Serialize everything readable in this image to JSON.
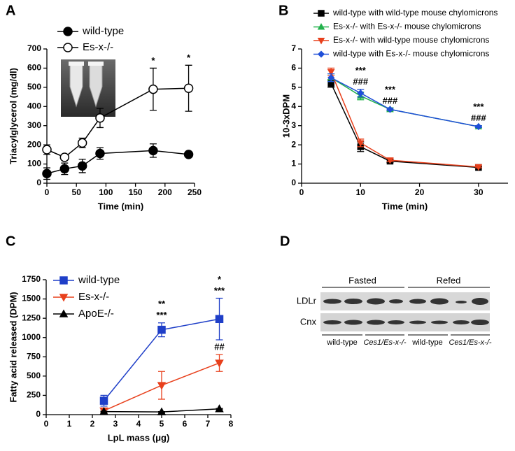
{
  "chart_data": [
    {
      "type": "line",
      "label": "A",
      "xlabel": "Time (min)",
      "ylabel": "Triacylglycerol (mg/dl)",
      "x": [
        0,
        30,
        60,
        90,
        180,
        240
      ],
      "xlim": [
        0,
        250
      ],
      "xticks": [
        0,
        50,
        100,
        150,
        200,
        250
      ],
      "ylim": [
        0,
        700
      ],
      "yticks": [
        0,
        100,
        200,
        300,
        400,
        500,
        600,
        700
      ],
      "series": [
        {
          "name": "wild-type",
          "color": "#000000",
          "marker": "circle",
          "values": [
            50,
            75,
            90,
            155,
            170,
            150
          ],
          "errors": [
            30,
            30,
            35,
            30,
            35,
            10
          ]
        },
        {
          "name": "Es-x-/-",
          "color": "#000000",
          "marker": "circle-open",
          "values": [
            175,
            135,
            210,
            340,
            490,
            495
          ],
          "errors": [
            25,
            10,
            25,
            50,
            110,
            120
          ]
        }
      ],
      "annotations": [
        {
          "x": 180,
          "texts": [
            "*"
          ],
          "series": 1
        },
        {
          "x": 240,
          "texts": [
            "*"
          ],
          "series": 1
        }
      ]
    },
    {
      "type": "line",
      "label": "B",
      "xlabel": "Time (min)",
      "ylabel": "10-3xDPM",
      "x": [
        5,
        10,
        15,
        30
      ],
      "xlim": [
        0,
        35
      ],
      "xticks": [
        0,
        10,
        20,
        30
      ],
      "ylim": [
        0,
        7
      ],
      "yticks": [
        0,
        1,
        2,
        3,
        4,
        5,
        6,
        7
      ],
      "series": [
        {
          "name": "wild-type with wild-type mouse chylomicrons",
          "color": "#000000",
          "marker": "square",
          "values": [
            5.2,
            1.9,
            1.15,
            0.82
          ],
          "errors": [
            0.2,
            0.25,
            0.08,
            0.05
          ]
        },
        {
          "name": "Es-x-/- with Es-x-/- mouse chylomicrons",
          "color": "#22b14c",
          "marker": "triangle-up",
          "values": [
            5.5,
            4.55,
            3.85,
            2.95
          ],
          "errors": [
            0.2,
            0.2,
            0.08,
            0.05
          ]
        },
        {
          "name": "Es-x-/- with wild-type mouse chylomicrons",
          "color": "#e8401c",
          "marker": "triangle-down",
          "values": [
            5.8,
            2.1,
            1.2,
            0.85
          ],
          "errors": [
            0.2,
            0.2,
            0.08,
            0.05
          ]
        },
        {
          "name": "wild-type with Es-x-/- mouse chylomicrons",
          "color": "#1f4fd8",
          "marker": "diamond",
          "values": [
            5.5,
            4.7,
            3.85,
            2.95
          ],
          "errors": [
            0.2,
            0.2,
            0.05,
            0.05
          ]
        }
      ],
      "annotations": [
        {
          "x": 10,
          "texts": [
            "***",
            "###"
          ],
          "series": 3
        },
        {
          "x": 15,
          "texts": [
            "***",
            "###"
          ],
          "series": 3
        },
        {
          "x": 30,
          "texts": [
            "***",
            "###"
          ],
          "series": 3
        }
      ]
    },
    {
      "type": "line",
      "label": "C",
      "xlabel": "LpL mass (μg)",
      "ylabel": "Fatty acid released (DPM)",
      "x": [
        2.5,
        5,
        7.5
      ],
      "xlim": [
        0,
        8
      ],
      "xticks": [
        0,
        1,
        2,
        3,
        4,
        5,
        6,
        7,
        8
      ],
      "ylim": [
        0,
        1750
      ],
      "yticks": [
        0,
        250,
        500,
        750,
        1000,
        1250,
        1500,
        1750
      ],
      "series": [
        {
          "name": "wild-type",
          "color": "#1f3fc8",
          "marker": "square",
          "values": [
            180,
            1100,
            1240
          ],
          "errors": [
            70,
            90,
            270
          ]
        },
        {
          "name": "Es-x-/-",
          "color": "#e8401c",
          "marker": "triangle-down",
          "values": [
            50,
            380,
            670
          ],
          "errors": [
            20,
            180,
            110
          ]
        },
        {
          "name": "ApoE-/-",
          "color": "#000000",
          "marker": "triangle-up",
          "values": [
            40,
            35,
            75
          ],
          "errors": [
            5,
            5,
            5
          ]
        }
      ],
      "annotations": [
        {
          "x": 5,
          "texts": [
            "**",
            "***"
          ],
          "series": 0
        },
        {
          "x": 7.5,
          "texts": [
            "*",
            "***"
          ],
          "series": 0
        },
        {
          "x": 7.5,
          "texts": [
            "##"
          ],
          "series": 1
        }
      ]
    }
  ],
  "panel_d": {
    "label": "D",
    "groups": [
      "Fasted",
      "Refed"
    ],
    "rows": [
      "LDLr",
      "Cnx"
    ],
    "lanes": [
      "wild-type",
      "Ces1/Es-x-/-",
      "wild-type",
      "Ces1/Es-x-/-"
    ]
  }
}
